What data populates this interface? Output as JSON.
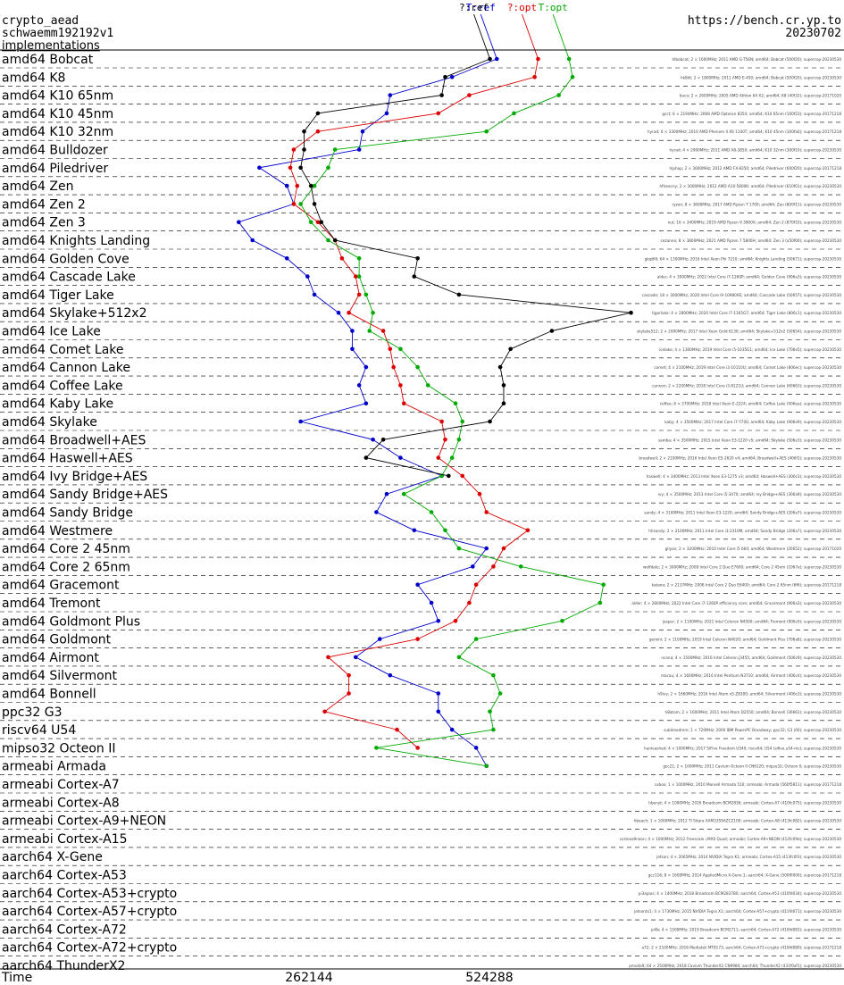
{
  "header": {
    "left_lines": [
      "crypto_aead",
      "schwaemm192192v1",
      "implementations"
    ],
    "right_lines": [
      "https://bench.cr.yp.to",
      "20230702"
    ]
  },
  "chart_data": {
    "type": "line",
    "xlabel": "Time",
    "x_ticks": [
      262144,
      524288
    ],
    "series": [
      {
        "name": "T:ref",
        "color": "#0000cc",
        "values": [
          535000,
          470000,
          380000,
          375000,
          340000,
          335000,
          190000,
          230000,
          240000,
          160000,
          180000,
          230000,
          260000,
          270000,
          305000,
          325000,
          325000,
          345000,
          335000,
          345000,
          250000,
          355000,
          395000,
          455000,
          375000,
          360000,
          415000,
          520000,
          500000,
          420000,
          440000,
          450000,
          365000,
          330000,
          380000,
          450000,
          450000,
          470000,
          505000,
          520000
        ]
      },
      {
        "name": "?:opt",
        "color": "#dd0000",
        "values": [
          595000,
          590000,
          495000,
          450000,
          275000,
          240000,
          235000,
          245000,
          240000,
          275000,
          300000,
          310000,
          330000,
          335000,
          320000,
          370000,
          380000,
          385000,
          395000,
          400000,
          455000,
          460000,
          450000,
          485000,
          510000,
          520000,
          580000,
          545000,
          530000,
          505000,
          495000,
          475000,
          420000,
          290000,
          320000,
          320000,
          285000,
          390000,
          420000
        ]
      },
      {
        "name": "T:opt",
        "color": "#00aa00",
        "values": [
          640000,
          645000,
          625000,
          560000,
          520000,
          300000,
          290000,
          270000,
          250000,
          265000,
          290000,
          335000,
          335000,
          345000,
          355000,
          350000,
          395000,
          420000,
          435000,
          475000,
          485000,
          480000,
          470000,
          455000,
          400000,
          440000,
          460000,
          480000,
          570000,
          690000,
          685000,
          630000,
          505000,
          480000,
          530000,
          540000,
          525000,
          530000,
          360000,
          520000
        ]
      },
      {
        "name": "?:ref",
        "color": "#000000",
        "values": [
          525000,
          460000,
          455000,
          275000,
          255000,
          255000,
          250000,
          265000,
          270000,
          280000,
          300000,
          420000,
          415000,
          480000,
          730000,
          615000,
          555000,
          540000,
          545000,
          545000,
          525000,
          370000,
          345000,
          465000
        ]
      }
    ]
  },
  "rows": [
    {
      "label": "amd64 Bobcat",
      "machine": "hlbobcat; 2 × 1600MHz; 2011 AMD G-T56N; amd64; Bobcat (500f20); supercop-20230530"
    },
    {
      "label": "amd64 K8",
      "machine": "hk8dt; 2 × 1800MHz; 2011 AMD E-450; amd64; Bobcat (500f20); supercop-20230530"
    },
    {
      "label": "amd64 K10 65nm",
      "machine": "buco; 2 × 2600MHz; 2005 AMD Athlon 64 X2; amd64; K8 (40f32); supercop-20171020"
    },
    {
      "label": "amd64 K10 45nm",
      "machine": "gcct; 6 × 2194MHz; 2008 AMD Opteron 8354; amd64; K10 65nm (100f23); supercop-20171218"
    },
    {
      "label": "amd64 K10 32nm",
      "machine": "hyrad; 6 × 3300MHz; 2010 AMD Phenom II X6 1100T; amd64; K10 45nm (100fa0); supercop-20171218"
    },
    {
      "label": "amd64 Bulldozer",
      "machine": "hyrad; 4 × 2900MHz; 2011 AMD A8-3850; amd64; K10 32nm (300f10); supercop-20230530"
    },
    {
      "label": "amd64 Piledriver",
      "machine": "hiphop; 2 × 3600MHz; 2012 AMD FX-8350; amd64; Piledriver (600f20); supercop-20171218"
    },
    {
      "label": "amd64 Zen",
      "machine": "hfireecny; 2 × 3000MHz; 2012 AMD A10-5800K; amd64; Piledriver (610f01); supercop-20230530"
    },
    {
      "label": "amd64 Zen 2",
      "machine": "ryzen; 8 × 3600MHz; 2017 AMD Ryzen 7 1700; amd64; Zen (800f11); supercop-20230530"
    },
    {
      "label": "amd64 Zen 3",
      "machine": "nut; 16 × 3400MHz; 2019 AMD Ryzen 9 3900X; amd64; Zen 2 (870f10); supercop-20230530"
    },
    {
      "label": "amd64 Knights Landing",
      "machine": "cezanne; 8 × 3800MHz; 2021 AMD Ryzen 7 5800H; amd64; Zen 3 (a50f00); supercop-20230530"
    },
    {
      "label": "amd64 Golden Cove",
      "machine": "gkqtll6; 64 × 1300MHz; 2016 Intel Xeon Phi 7210; amd64; Knights Landing (50671); supercop-20230530"
    },
    {
      "label": "amd64 Cascade Lake",
      "machine": "alder; 4 × 3000MHz; 2022 Intel Core i7-1260P; amd64; Golden Cove (906a3); supercop-20230530"
    },
    {
      "label": "amd64 Tiger Lake",
      "machine": "cascade; 18 × 3000MHz; 2020 Intel Core i9-10980XE; amd64; Cascade Lake (50657); supercop-20230530"
    },
    {
      "label": "amd64 Skylake+512x2",
      "machine": "tigerlake; 4 × 2800MHz; 2020 Intel Core i7-1165G7; amd64; Tiger Lake (806c1); supercop-20230530"
    },
    {
      "label": "amd64 Ice Lake",
      "machine": "skylake512; 2 × 2000MHz; 2017 Intel Xeon Gold 6130; amd64; Skylake+512x2 (50654); supercop-20230530"
    },
    {
      "label": "amd64 Comet Lake",
      "machine": "icelake; 4 × 1300MHz; 2019 Intel Core i5-1035G1; amd64; Ice Lake (706e5); supercop-20230530"
    },
    {
      "label": "amd64 Cannon Lake",
      "machine": "comet; 4 × 2100MHz; 2019 Intel Core i3-10110U; amd64; Comet Lake (806ec); supercop-20230530"
    },
    {
      "label": "amd64 Coffee Lake",
      "machine": "cannon; 2 × 2200MHz; 2018 Intel Core i3-8121U; amd64; Cannon Lake (60663); supercop-20230530"
    },
    {
      "label": "amd64 Kaby Lake",
      "machine": "coffee; 6 × 3700MHz; 2018 Intel Xeon E-2224; amd64; Coffee Lake (906ea); supercop-20230530"
    },
    {
      "label": "amd64 Skylake",
      "machine": "kaby; 4 × 3500MHz; 2017 Intel Core i7-7700; amd64; Kaby Lake (906e9); supercop-20230530"
    },
    {
      "label": "amd64 Broadwell+AES",
      "machine": "samba; 4 × 3500MHz; 2015 Intel Xeon E3-1220 v5; amd64; Skylake (506e3); supercop-20230530"
    },
    {
      "label": "amd64 Haswell+AES",
      "machine": "broadwell; 2 × 2100MHz; 2016 Intel Xeon E5-2620 v4; amd64; Broadwell+AES (406f1); supercop-20230530"
    },
    {
      "label": "amd64 Ivy Bridge+AES",
      "machine": "haswell; 4 × 3400MHz; 2013 Intel Xeon E3-1275 v3; amd64; Haswell+AES (306c3); supercop-20230530"
    },
    {
      "label": "amd64 Sandy Bridge+AES",
      "machine": "ivy; 4 × 3500MHz; 2013 Intel Core i5-3470; amd64; Ivy Bridge+AES (306a9); supercop-20230530"
    },
    {
      "label": "amd64 Sandy Bridge",
      "machine": "sandy; 4 × 3100MHz; 2011 Intel Xeon E3-1220; amd64; Sandy Bridge+AES (206a7); supercop-20230530"
    },
    {
      "label": "amd64 Westmere",
      "machine": "hhsandy; 2 × 2100MHz; 2011 Intel Core i3-2310M; amd64; Sandy Bridge (206a7); supercop-20230530"
    },
    {
      "label": "amd64 Core 2 45nm",
      "machine": "gilyan; 2 × 3200MHz; 2010 Intel Core i5 660; amd64; Westmere (20652); supercop-20171020"
    },
    {
      "label": "amd64 Core 2 65nm",
      "machine": "wolfdale; 2 × 3000MHz; 2009 Intel Core 2 Duo E7600; amd64; Core 2 45nm (1067a); supercop-20230530"
    },
    {
      "label": "amd64 Gracemont",
      "machine": "katana; 2 × 2137MHz; 2006 Intel Core 2 Duo E6400; amd64; Core 2 65nm (6f6); supercop-20171218"
    },
    {
      "label": "amd64 Tremont",
      "machine": "alder; 4 × 2800MHz; 2022 Intel Core i7-1260P efficiency core; amd64; Gracemont (906a3); supercop-20230530"
    },
    {
      "label": "amd64 Goldmont Plus",
      "machine": "jasper; 2 × 1100MHz; 2021 Intel Celeron N4500; amd64; Tremont (906c0); supercop-20230530"
    },
    {
      "label": "amd64 Goldmont",
      "machine": "gemini; 2 × 1100MHz; 2019 Intel Celeron N4020; amd64; Goldmont Plus (706a8); supercop-20230530"
    },
    {
      "label": "amd64 Airmont",
      "machine": "ncona; 4 × 1500MHz; 2016 Intel Celeron J3455; amd64; Goldmont (506c9); supercop-20230530"
    },
    {
      "label": "amd64 Silvermont",
      "machine": "macau; 4 × 1600MHz; 2016 Intel Pentium N3710; amd64; Airmont (406c4); supercop-20230530"
    },
    {
      "label": "amd64 Bonnell",
      "machine": "h9ivy; 2 × 1660MHz; 2016 Intel Atom x5-Z8300; amd64; Silvermont (406c3); supercop-20230530"
    },
    {
      "label": "ppc32 G3",
      "machine": "h8atom; 2 × 1600MHz; 2011 Intel Atom D2550; amd64; Bonnell (30661); supercop-20230530"
    },
    {
      "label": "riscv64 U54",
      "machine": "sublimedmm; 1 × 720MHz; 2000 IBM PowerPC Broadway; ppc32; G3 (00); supercop-20230530"
    },
    {
      "label": "mipso32 Octeon II",
      "machine": "hunleashed; 4 × 1000MHz; 2017 SiFive Freedom U540; riscv64; U54 (sifive,u54-mc); supercop-20230530"
    },
    {
      "label": "armeabi Armada",
      "machine": "gcc21; 2 × 1000MHz; 2011 Cavium Octeon II CN6120; mipso32; Octeon II; supercop-20230530"
    },
    {
      "label": "armeabi Cortex-A7",
      "machine": "cubox; 1 × 1000MHz; 2010 Marvell Armada 510; armeabi; Armada (560f5811); supercop-20171218"
    },
    {
      "label": "armeabi Cortex-A8",
      "machine": "hbenyt; 4 × 1000MHz; 2016 Broadcom BCM2836; armeabi; Cortex-A7 (410fc075); supercop-20230530"
    },
    {
      "label": "armeabi Cortex-A9+NEON",
      "machine": "hbeach; 1 × 1000MHz; 2012 TI Sitara XAM3359AZCZ100; armeabi; Cortex-A8 (413fc082); supercop-20230530"
    },
    {
      "label": "armeabi Cortex-A15",
      "machine": "cortexa9neon; 4 × 1000MHz; 2012 Freescale i.MX6 Quad; armeabi; Cortex-A9+NEON (412fc09a); supercop-20230530"
    },
    {
      "label": "aarch64 X-Gene",
      "machine": "jetson; 4 × 2065MHz; 2014 NVIDIA Tegra K1; armeabi; Cortex-A15 (413fc0f3); supercop-20230530"
    },
    {
      "label": "aarch64 Cortex-A53",
      "machine": "gcc116; 8 × 1600MHz; 2014 AppliedMicro X-Gene 1; aarch64; X-Gene (500f0000); supercop-20171218"
    },
    {
      "label": "aarch64 Cortex-A53+crypto",
      "machine": "pi3aplus; 4 × 1400MHz; 2018 Broadcom BCM2837B0; aarch64; Cortex-A53 (410fd034); supercop-20230530"
    },
    {
      "label": "aarch64 Cortex-A57+crypto",
      "machine": "jetsontx1; 4 × 1730MHz; 2015 NVIDIA Tegra X1; aarch64; Cortex-A57+crypto (411fd071); supercop-20230530"
    },
    {
      "label": "aarch64 Cortex-A72",
      "machine": "pi4b; 4 × 1500MHz; 2019 Broadcom BCM2711; aarch64; Cortex-A72 (410fd083); supercop-20230530"
    },
    {
      "label": "aarch64 Cortex-A72+crypto",
      "machine": "a72; 2 × 2100MHz; 2016 Mediatek MT8173; aarch64; Cortex-A72+crypto (410fd080); supercop-20171218"
    },
    {
      "label": "aarch64 ThunderX2",
      "machine": "pmo4a9; 64 × 2500MHz; 2018 Cavium ThunderX2 CN9980; aarch64; ThunderX2 (431f0af1); supercop-20230530"
    }
  ]
}
